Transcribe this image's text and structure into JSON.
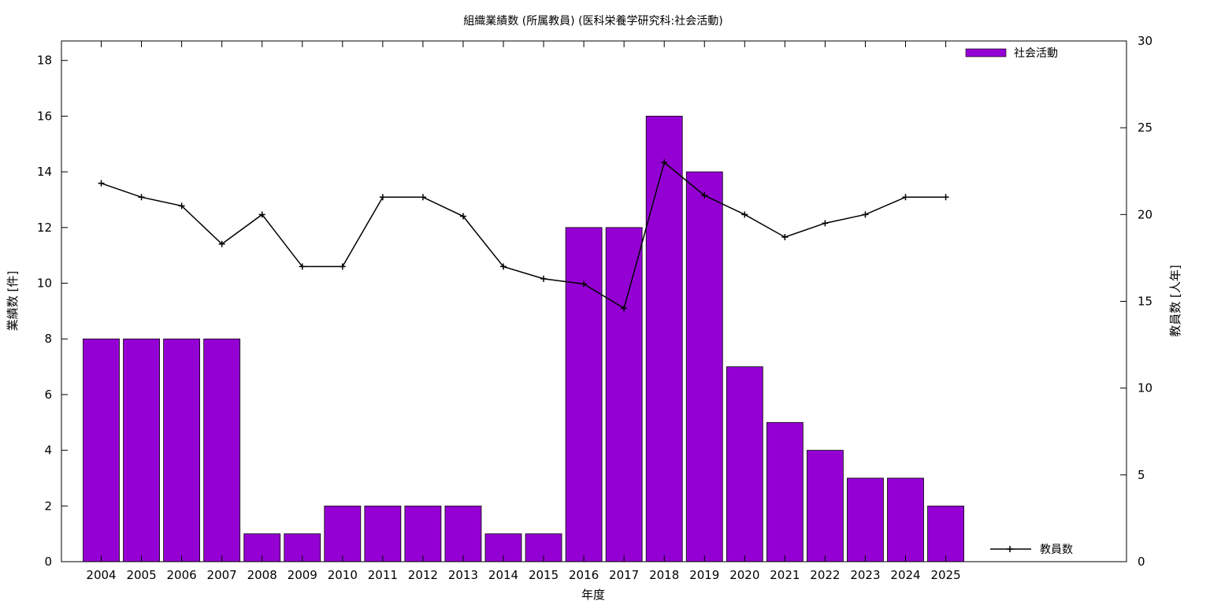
{
  "chart_data": {
    "type": "bar",
    "title": "組織業績数 (所属教員) (医科栄養学研究科:社会活動)",
    "xlabel": "年度",
    "ylabel": "業績数 [件]",
    "y2label": "教員数 [人年]",
    "categories": [
      "2004",
      "2005",
      "2006",
      "2007",
      "2008",
      "2009",
      "2010",
      "2011",
      "2012",
      "2013",
      "2014",
      "2015",
      "2016",
      "2017",
      "2018",
      "2019",
      "2020",
      "2021",
      "2022",
      "2023",
      "2024",
      "2025"
    ],
    "series": [
      {
        "name": "社会活動",
        "type": "bar",
        "axis": "left",
        "color": "#9400D3",
        "values": [
          8,
          8,
          8,
          8,
          1,
          1,
          2,
          2,
          2,
          2,
          1,
          1,
          12,
          12,
          16,
          14,
          7,
          5,
          4,
          3,
          3,
          2
        ]
      },
      {
        "name": "教員数",
        "type": "line",
        "axis": "right",
        "color": "#000000",
        "values": [
          21.8,
          21.0,
          20.5,
          18.3,
          20.0,
          17.0,
          17.0,
          21.0,
          21.0,
          19.9,
          17.0,
          16.3,
          16.0,
          14.6,
          23.0,
          21.1,
          20.0,
          18.7,
          19.5,
          20.0,
          21.0,
          21.0
        ]
      }
    ],
    "ylim": [
      0,
      18.7
    ],
    "y2lim": [
      0,
      30
    ],
    "yticks": [
      "0",
      "2",
      "4",
      "6",
      "8",
      "10",
      "12",
      "14",
      "16",
      "18"
    ],
    "y2ticks": [
      "0",
      "5",
      "10",
      "15",
      "20",
      "25",
      "30"
    ],
    "legend_position": "top-right / bottom-right"
  }
}
